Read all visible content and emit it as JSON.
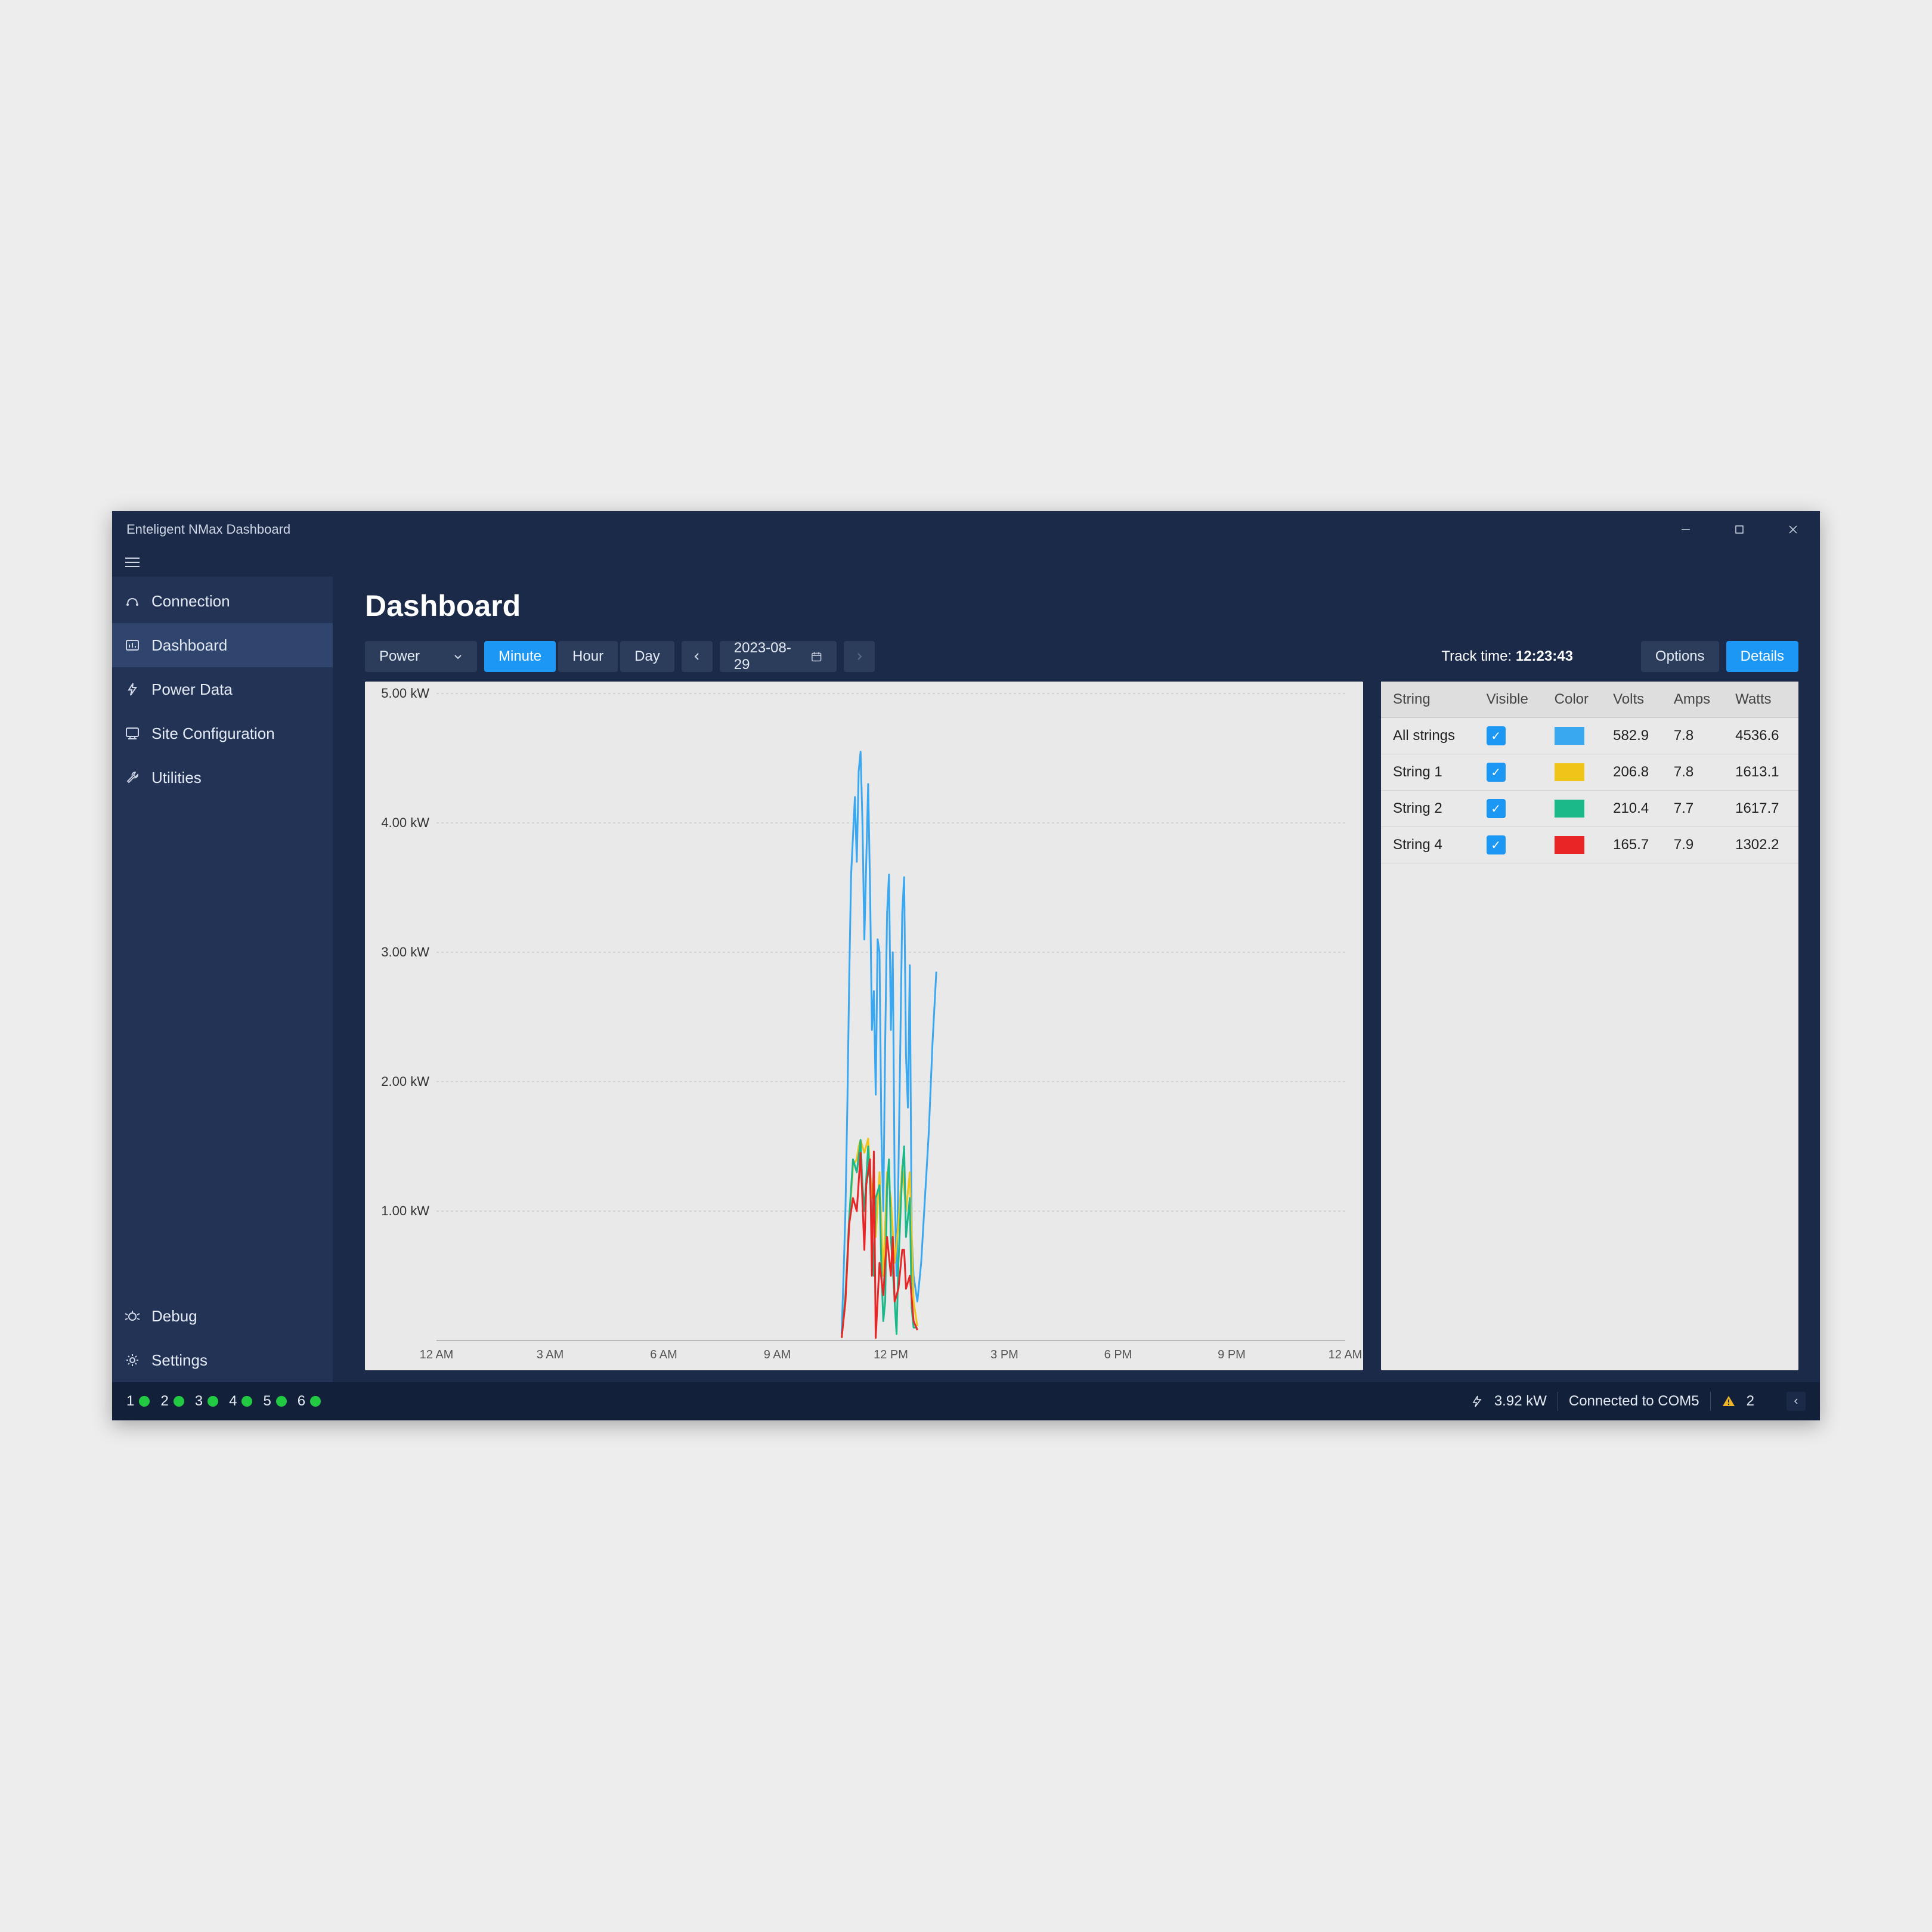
{
  "window": {
    "title": "Enteligent NMax Dashboard"
  },
  "sidebar": {
    "items": [
      {
        "icon": "connection-icon",
        "label": "Connection"
      },
      {
        "icon": "dashboard-icon",
        "label": "Dashboard",
        "active": true
      },
      {
        "icon": "power-data-icon",
        "label": "Power Data"
      },
      {
        "icon": "site-config-icon",
        "label": "Site Configuration"
      },
      {
        "icon": "utilities-icon",
        "label": "Utilities"
      }
    ],
    "bottom": [
      {
        "icon": "debug-icon",
        "label": "Debug"
      },
      {
        "icon": "settings-icon",
        "label": "Settings"
      }
    ]
  },
  "page": {
    "title": "Dashboard"
  },
  "toolbar": {
    "metric_dropdown": "Power",
    "intervals": [
      {
        "label": "Minute",
        "active": true
      },
      {
        "label": "Hour",
        "active": false
      },
      {
        "label": "Day",
        "active": false
      }
    ],
    "date": "2023-08-29",
    "track_label": "Track time: ",
    "track_value": "12:23:43",
    "options_label": "Options",
    "details_label": "Details"
  },
  "chart": {
    "type": "line",
    "background_color": "#e9e9e9",
    "grid_color": "#bdbdbd",
    "ylim": [
      0,
      5.0
    ],
    "ytick_step": 1.0,
    "y_unit": "kW",
    "y_labels": [
      "5.00 kW",
      "4.00 kW",
      "3.00 kW",
      "2.00 kW",
      "1.00 kW"
    ],
    "x_labels": [
      "12 AM",
      "3 AM",
      "6 AM",
      "9 AM",
      "12 PM",
      "3 PM",
      "6 PM",
      "9 PM",
      "12 AM"
    ],
    "xlim_hours": [
      0,
      24
    ],
    "series": [
      {
        "name": "All strings",
        "color": "#3aa8f0",
        "stroke_width": 3,
        "data": [
          [
            10.7,
            0.05
          ],
          [
            10.75,
            0.5
          ],
          [
            10.8,
            1.0
          ],
          [
            10.85,
            1.8
          ],
          [
            10.9,
            2.8
          ],
          [
            10.95,
            3.6
          ],
          [
            11.0,
            3.9
          ],
          [
            11.05,
            4.2
          ],
          [
            11.1,
            3.7
          ],
          [
            11.15,
            4.4
          ],
          [
            11.2,
            4.55
          ],
          [
            11.25,
            4.0
          ],
          [
            11.3,
            3.1
          ],
          [
            11.35,
            3.7
          ],
          [
            11.4,
            4.3
          ],
          [
            11.45,
            3.5
          ],
          [
            11.5,
            2.4
          ],
          [
            11.55,
            2.7
          ],
          [
            11.6,
            1.9
          ],
          [
            11.65,
            3.1
          ],
          [
            11.7,
            3.0
          ],
          [
            11.75,
            1.6
          ],
          [
            11.8,
            1.0
          ],
          [
            11.85,
            2.3
          ],
          [
            11.9,
            3.3
          ],
          [
            11.95,
            3.6
          ],
          [
            12.0,
            2.4
          ],
          [
            12.05,
            3.0
          ],
          [
            12.1,
            1.2
          ],
          [
            12.15,
            0.5
          ],
          [
            12.2,
            1.3
          ],
          [
            12.25,
            2.3
          ],
          [
            12.3,
            3.3
          ],
          [
            12.35,
            3.58
          ],
          [
            12.4,
            2.2
          ],
          [
            12.45,
            1.8
          ],
          [
            12.5,
            2.9
          ],
          [
            12.55,
            0.8
          ],
          [
            12.6,
            0.5
          ],
          [
            12.7,
            0.3
          ],
          [
            12.8,
            0.6
          ],
          [
            12.9,
            1.1
          ],
          [
            13.0,
            1.6
          ],
          [
            13.1,
            2.3
          ],
          [
            13.2,
            2.85
          ]
        ]
      },
      {
        "name": "String 1",
        "color": "#f0c419",
        "stroke_width": 3,
        "data": [
          [
            10.7,
            0.02
          ],
          [
            10.8,
            0.3
          ],
          [
            10.9,
            0.9
          ],
          [
            11.0,
            1.35
          ],
          [
            11.1,
            1.4
          ],
          [
            11.15,
            1.5
          ],
          [
            11.2,
            1.55
          ],
          [
            11.3,
            1.45
          ],
          [
            11.4,
            1.56
          ],
          [
            11.5,
            1.1
          ],
          [
            11.55,
            1.3
          ],
          [
            11.6,
            0.8
          ],
          [
            11.7,
            1.3
          ],
          [
            11.8,
            0.5
          ],
          [
            11.9,
            1.3
          ],
          [
            12.0,
            1.1
          ],
          [
            12.1,
            0.6
          ],
          [
            12.2,
            0.9
          ],
          [
            12.3,
            1.35
          ],
          [
            12.4,
            1.0
          ],
          [
            12.5,
            1.3
          ],
          [
            12.6,
            0.3
          ],
          [
            12.7,
            0.11
          ]
        ]
      },
      {
        "name": "String 2",
        "color": "#1bb88a",
        "stroke_width": 3,
        "data": [
          [
            10.7,
            0.02
          ],
          [
            10.8,
            0.35
          ],
          [
            10.9,
            0.95
          ],
          [
            11.0,
            1.4
          ],
          [
            11.1,
            1.3
          ],
          [
            11.2,
            1.55
          ],
          [
            11.25,
            1.2
          ],
          [
            11.3,
            1.0
          ],
          [
            11.4,
            1.5
          ],
          [
            11.5,
            0.9
          ],
          [
            11.55,
            0.5
          ],
          [
            11.6,
            1.1
          ],
          [
            11.7,
            1.2
          ],
          [
            11.75,
            0.55
          ],
          [
            11.8,
            0.15
          ],
          [
            11.85,
            0.3
          ],
          [
            11.9,
            1.2
          ],
          [
            11.95,
            1.4
          ],
          [
            12.0,
            0.8
          ],
          [
            12.1,
            0.3
          ],
          [
            12.15,
            0.05
          ],
          [
            12.2,
            0.6
          ],
          [
            12.3,
            1.3
          ],
          [
            12.35,
            1.5
          ],
          [
            12.4,
            0.8
          ],
          [
            12.5,
            1.1
          ],
          [
            12.55,
            0.25
          ],
          [
            12.6,
            0.1
          ],
          [
            12.7,
            0.1
          ]
        ]
      },
      {
        "name": "String 4",
        "color": "#e92525",
        "stroke_width": 3,
        "data": [
          [
            10.7,
            0.02
          ],
          [
            10.8,
            0.3
          ],
          [
            10.9,
            0.9
          ],
          [
            11.0,
            1.1
          ],
          [
            11.1,
            1.0
          ],
          [
            11.2,
            1.45
          ],
          [
            11.3,
            0.7
          ],
          [
            11.35,
            1.2
          ],
          [
            11.4,
            1.3
          ],
          [
            11.45,
            1.4
          ],
          [
            11.5,
            0.5
          ],
          [
            11.55,
            1.46
          ],
          [
            11.6,
            0.02
          ],
          [
            11.7,
            0.6
          ],
          [
            11.8,
            0.35
          ],
          [
            11.85,
            0.6
          ],
          [
            11.9,
            0.8
          ],
          [
            12.0,
            0.5
          ],
          [
            12.05,
            0.8
          ],
          [
            12.1,
            0.3
          ],
          [
            12.2,
            0.4
          ],
          [
            12.3,
            0.7
          ],
          [
            12.35,
            0.7
          ],
          [
            12.4,
            0.4
          ],
          [
            12.5,
            0.5
          ],
          [
            12.6,
            0.15
          ],
          [
            12.7,
            0.08
          ]
        ]
      }
    ]
  },
  "table": {
    "columns": [
      "String",
      "Visible",
      "Color",
      "Volts",
      "Amps",
      "Watts"
    ],
    "rows": [
      {
        "name": "All strings",
        "visible": true,
        "color": "#3aa8f0",
        "volts": "582.9",
        "amps": "7.8",
        "watts": "4536.6"
      },
      {
        "name": "String 1",
        "visible": true,
        "color": "#f0c419",
        "volts": "206.8",
        "amps": "7.8",
        "watts": "1613.1"
      },
      {
        "name": "String 2",
        "visible": true,
        "color": "#1bb88a",
        "volts": "210.4",
        "amps": "7.7",
        "watts": "1617.7"
      },
      {
        "name": "String 4",
        "visible": true,
        "color": "#e92525",
        "volts": "165.7",
        "amps": "7.9",
        "watts": "1302.2"
      }
    ]
  },
  "statusbar": {
    "leds": [
      "1",
      "2",
      "3",
      "4",
      "5",
      "6"
    ],
    "led_color": "#22c943",
    "power": "3.92 kW",
    "connection": "Connected to COM5",
    "warn_count": "2"
  }
}
